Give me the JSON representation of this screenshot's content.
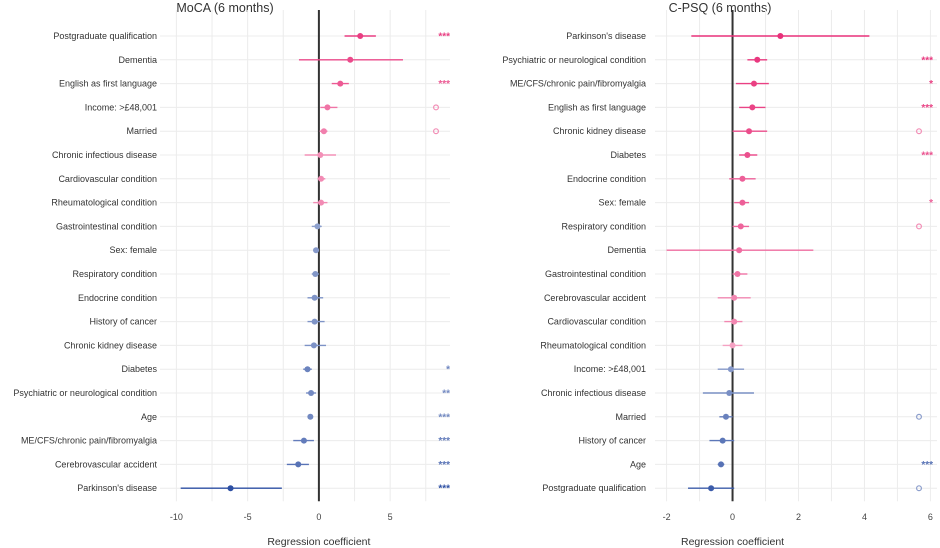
{
  "colors": {
    "positive": "#e8317a",
    "negative": "#2d4fa3",
    "zero_line": "#333333",
    "grid": "#ececec",
    "text": "#333333"
  },
  "chart_data": [
    {
      "type": "forest",
      "title": "MoCA (6 months)",
      "xlabel": "Regression coefficient",
      "xlim": [
        -10.8,
        9.2
      ],
      "xticks": [
        -10,
        -5,
        0,
        5
      ],
      "minor_grid_step": 2.5,
      "grid": true,
      "rows": [
        {
          "label": "Postgraduate qualification",
          "est": 2.9,
          "lo": 1.8,
          "hi": 4.0,
          "sig": "***"
        },
        {
          "label": "Dementia",
          "est": 2.2,
          "lo": -1.4,
          "hi": 5.9,
          "sig": ""
        },
        {
          "label": "English as first language",
          "est": 1.5,
          "lo": 0.9,
          "hi": 2.1,
          "sig": "***"
        },
        {
          "label": "Income: >£48,001",
          "est": 0.6,
          "lo": 0.1,
          "hi": 1.3,
          "sig": "o"
        },
        {
          "label": "Married",
          "est": 0.35,
          "lo": 0.05,
          "hi": 0.6,
          "sig": "o"
        },
        {
          "label": "Chronic infectious disease",
          "est": 0.1,
          "lo": -1.0,
          "hi": 1.2,
          "sig": ""
        },
        {
          "label": "Cardiovascular condition",
          "est": 0.15,
          "lo": -0.1,
          "hi": 0.45,
          "sig": ""
        },
        {
          "label": "Rheumatological condition",
          "est": 0.15,
          "lo": -0.4,
          "hi": 0.6,
          "sig": ""
        },
        {
          "label": "Gastrointestinal condition",
          "est": -0.1,
          "lo": -0.5,
          "hi": 0.2,
          "sig": ""
        },
        {
          "label": "Sex: female",
          "est": -0.2,
          "lo": -0.4,
          "hi": 0.0,
          "sig": ""
        },
        {
          "label": "Respiratory condition",
          "est": -0.25,
          "lo": -0.5,
          "hi": 0.0,
          "sig": ""
        },
        {
          "label": "Endocrine condition",
          "est": -0.3,
          "lo": -0.8,
          "hi": 0.3,
          "sig": ""
        },
        {
          "label": "History of cancer",
          "est": -0.3,
          "lo": -0.8,
          "hi": 0.4,
          "sig": ""
        },
        {
          "label": "Chronic kidney disease",
          "est": -0.35,
          "lo": -1.0,
          "hi": 0.5,
          "sig": ""
        },
        {
          "label": "Diabetes",
          "est": -0.8,
          "lo": -1.1,
          "hi": -0.5,
          "sig": "*"
        },
        {
          "label": "Psychiatric or neurological condition",
          "est": -0.55,
          "lo": -0.9,
          "hi": -0.2,
          "sig": "**"
        },
        {
          "label": "Age",
          "est": -0.6,
          "lo": -0.7,
          "hi": -0.5,
          "sig": "***"
        },
        {
          "label": "ME/CFS/chronic pain/fibromyalgia",
          "est": -1.05,
          "lo": -1.8,
          "hi": -0.35,
          "sig": "***"
        },
        {
          "label": "Cerebrovascular accident",
          "est": -1.45,
          "lo": -2.25,
          "hi": -0.7,
          "sig": "***"
        },
        {
          "label": "Parkinson's disease",
          "est": -6.2,
          "lo": -9.7,
          "hi": -2.6,
          "sig": "***"
        }
      ]
    },
    {
      "type": "forest",
      "title": "C-PSQ (6 months)",
      "xlabel": "Regression coefficient",
      "xlim": [
        -2.2,
        6.2
      ],
      "xticks": [
        -2,
        0,
        2,
        4,
        6
      ],
      "minor_grid_step": 1,
      "grid": true,
      "rows": [
        {
          "label": "Parkinson's disease",
          "est": 1.45,
          "lo": -1.25,
          "hi": 4.15,
          "sig": ""
        },
        {
          "label": "Psychiatric or neurological condition",
          "est": 0.75,
          "lo": 0.45,
          "hi": 1.05,
          "sig": "***"
        },
        {
          "label": "ME/CFS/chronic pain/fibromyalgia",
          "est": 0.65,
          "lo": 0.1,
          "hi": 1.1,
          "sig": "*"
        },
        {
          "label": "English as first language",
          "est": 0.6,
          "lo": 0.2,
          "hi": 1.0,
          "sig": "***"
        },
        {
          "label": "Chronic kidney disease",
          "est": 0.5,
          "lo": 0.0,
          "hi": 1.05,
          "sig": "o"
        },
        {
          "label": "Diabetes",
          "est": 0.45,
          "lo": 0.2,
          "hi": 0.75,
          "sig": "***"
        },
        {
          "label": "Endocrine condition",
          "est": 0.3,
          "lo": -0.1,
          "hi": 0.7,
          "sig": ""
        },
        {
          "label": "Sex: female",
          "est": 0.3,
          "lo": 0.05,
          "hi": 0.5,
          "sig": "*"
        },
        {
          "label": "Respiratory condition",
          "est": 0.25,
          "lo": 0.0,
          "hi": 0.5,
          "sig": "o"
        },
        {
          "label": "Dementia",
          "est": 0.2,
          "lo": -2.0,
          "hi": 2.45,
          "sig": ""
        },
        {
          "label": "Gastrointestinal condition",
          "est": 0.15,
          "lo": 0.0,
          "hi": 0.45,
          "sig": ""
        },
        {
          "label": "Cerebrovascular accident",
          "est": 0.05,
          "lo": -0.45,
          "hi": 0.55,
          "sig": ""
        },
        {
          "label": "Cardiovascular condition",
          "est": 0.05,
          "lo": -0.25,
          "hi": 0.3,
          "sig": ""
        },
        {
          "label": "Rheumatological condition",
          "est": 0.0,
          "lo": -0.3,
          "hi": 0.3,
          "sig": ""
        },
        {
          "label": "Income: >£48,001",
          "est": -0.05,
          "lo": -0.45,
          "hi": 0.35,
          "sig": ""
        },
        {
          "label": "Chronic infectious disease",
          "est": -0.1,
          "lo": -0.9,
          "hi": 0.65,
          "sig": ""
        },
        {
          "label": "Married",
          "est": -0.2,
          "lo": -0.4,
          "hi": 0.0,
          "sig": "o"
        },
        {
          "label": "History of cancer",
          "est": -0.3,
          "lo": -0.7,
          "hi": 0.05,
          "sig": ""
        },
        {
          "label": "Age",
          "est": -0.35,
          "lo": -0.45,
          "hi": -0.25,
          "sig": "***"
        },
        {
          "label": "Postgraduate qualification",
          "est": -0.65,
          "lo": -1.35,
          "hi": 0.05,
          "sig": "o"
        }
      ]
    }
  ]
}
